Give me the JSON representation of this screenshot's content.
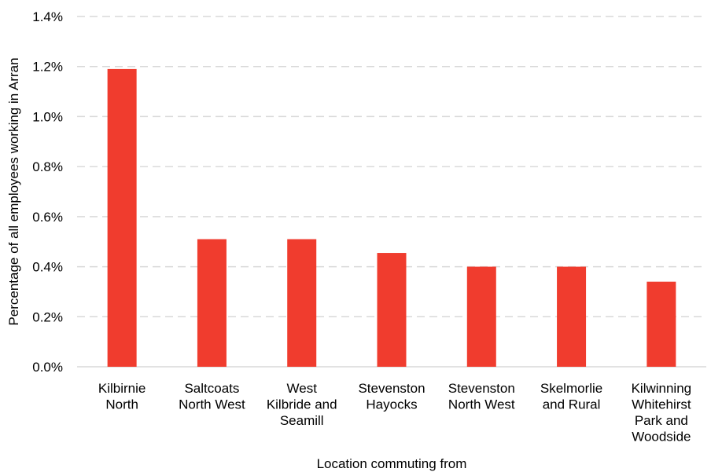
{
  "chart_data": {
    "type": "bar",
    "title": "",
    "xlabel": "Location commuting from",
    "ylabel": "Percentage of all employees working in Arran",
    "ylim": [
      0,
      1.4
    ],
    "ytick_step": 0.2,
    "ytick_labels": [
      "0.0%",
      "0.2%",
      "0.4%",
      "0.6%",
      "0.8%",
      "1.0%",
      "1.2%",
      "1.4%"
    ],
    "grid": true,
    "legend": "none",
    "bar_color": "#f03c2e",
    "categories": [
      [
        "Kilbirnie",
        "North"
      ],
      [
        "Saltcoats",
        "North West"
      ],
      [
        "West",
        "Kilbride and",
        "Seamill"
      ],
      [
        "Stevenston",
        "Hayocks"
      ],
      [
        "Stevenston",
        "North West"
      ],
      [
        "Skelmorlie",
        "and Rural"
      ],
      [
        "Kilwinning",
        "Whitehirst",
        "Park and",
        "Woodside"
      ]
    ],
    "values": [
      1.19,
      0.51,
      0.51,
      0.455,
      0.4,
      0.4,
      0.34
    ]
  }
}
